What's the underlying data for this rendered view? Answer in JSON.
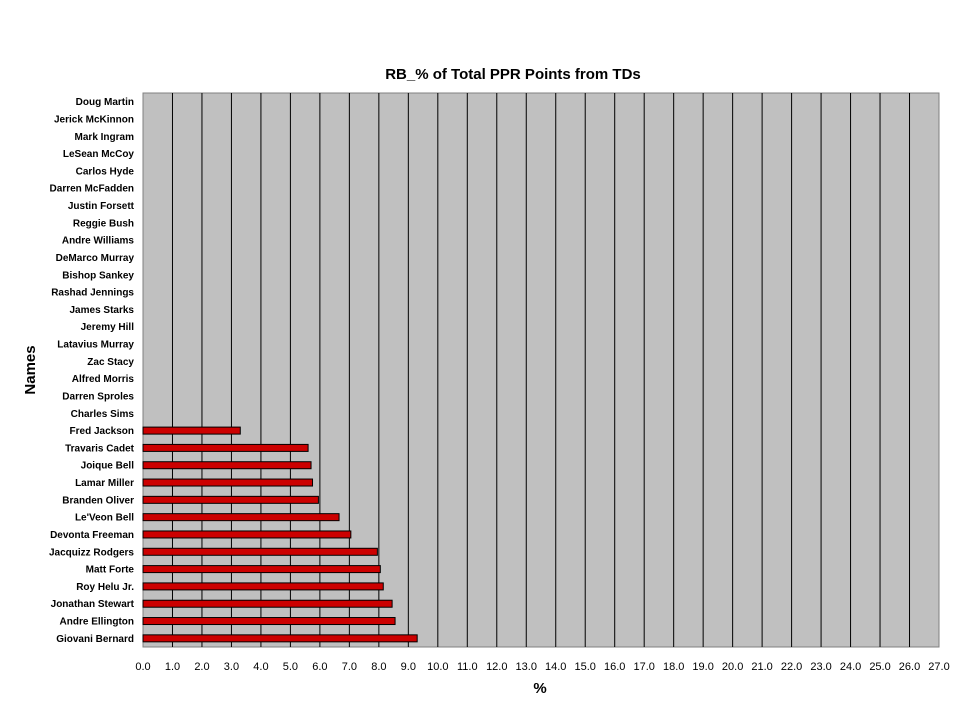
{
  "chart_data": {
    "type": "bar",
    "orientation": "horizontal",
    "title": "RB_% of Total PPR Points from TDs",
    "xlabel": "%",
    "ylabel": "Names",
    "xlim": [
      0,
      27
    ],
    "x_ticks": [
      "0.0",
      "1.0",
      "2.0",
      "3.0",
      "4.0",
      "5.0",
      "6.0",
      "7.0",
      "8.0",
      "9.0",
      "10.0",
      "11.0",
      "12.0",
      "13.0",
      "14.0",
      "15.0",
      "16.0",
      "17.0",
      "18.0",
      "19.0",
      "20.0",
      "21.0",
      "22.0",
      "23.0",
      "24.0",
      "25.0",
      "26.0",
      "27.0"
    ],
    "grid": "vertical",
    "legend": "none",
    "colors": {
      "bar": "#cc0000",
      "bar_edge": "#000000",
      "plot_bg": "#c0c0c0",
      "grid": "#000000"
    },
    "categories": [
      "Doug Martin",
      "Jerick McKinnon",
      "Mark Ingram",
      "LeSean McCoy",
      "Carlos Hyde",
      "Darren McFadden",
      "Justin Forsett",
      "Reggie Bush",
      "Andre Williams",
      "DeMarco Murray",
      "Bishop Sankey",
      "Rashad Jennings",
      "James Starks",
      "Jeremy Hill",
      "Latavius Murray",
      "Zac Stacy",
      "Alfred Morris",
      "Darren Sproles",
      "Charles Sims",
      "Fred Jackson",
      "Travaris Cadet",
      "Joique Bell",
      "Lamar Miller",
      "Branden Oliver",
      "Le'Veon Bell",
      "Devonta Freeman",
      "Jacquizz Rodgers",
      "Matt Forte",
      "Roy Helu Jr.",
      "Jonathan Stewart",
      "Andre Ellington",
      "Giovani Bernard"
    ],
    "values": [
      0,
      0,
      0,
      0,
      0,
      0,
      0,
      0,
      0,
      0,
      0,
      0,
      0,
      0,
      0,
      0,
      0,
      0,
      0,
      3.3,
      5.6,
      5.7,
      5.75,
      5.95,
      6.65,
      7.05,
      7.95,
      8.05,
      8.15,
      8.45,
      8.55,
      9.3
    ]
  }
}
